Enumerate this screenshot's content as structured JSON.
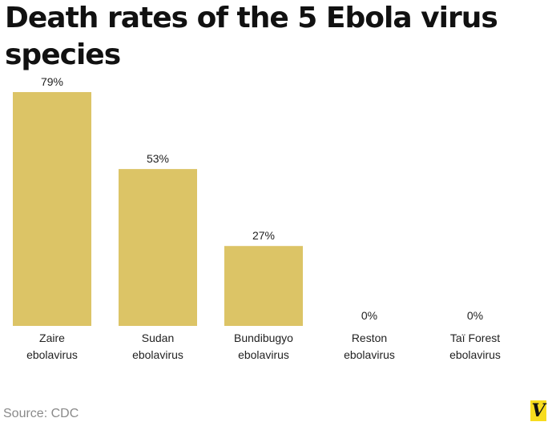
{
  "chart_data": {
    "type": "bar",
    "title": "Death rates of the 5 Ebola virus species",
    "categories": [
      [
        "Zaire",
        "ebolavirus"
      ],
      [
        "Sudan",
        "ebolavirus"
      ],
      [
        "Bundibugyo",
        "ebolavirus"
      ],
      [
        "Reston",
        "ebolavirus"
      ],
      [
        "Taï Forest",
        "ebolavirus"
      ]
    ],
    "values": [
      79,
      53,
      27,
      0,
      0
    ],
    "value_labels": [
      "79%",
      "53%",
      "27%",
      "0%",
      "0%"
    ],
    "unit": "%",
    "bar_color": "#dcc466",
    "grid": false,
    "legend": "none"
  },
  "source": "Source: CDC",
  "logo_text": "V"
}
